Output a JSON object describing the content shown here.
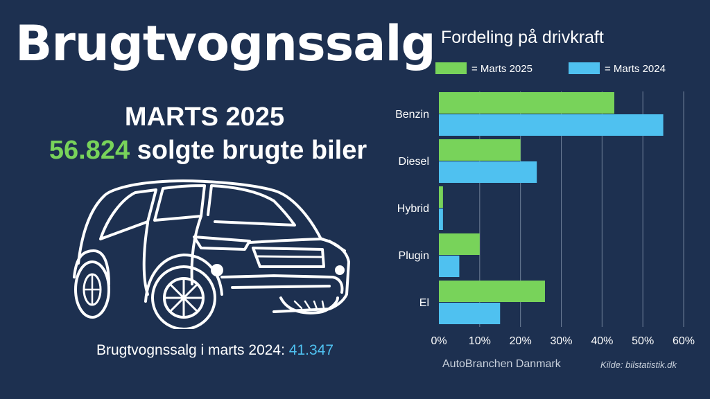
{
  "header": {
    "title": "Brugtvognssalg",
    "month": "MARTS 2025",
    "sold_number": "56.824",
    "sold_text": " solgte brugte biler"
  },
  "footer": {
    "prev_label": "Brugtvognssalg i marts 2024: ",
    "prev_value": "41.347",
    "org": "AutoBranchen Danmark",
    "source": "Kilde: bilstatistik.dk"
  },
  "colors": {
    "background": "#1d3050",
    "green": "#78d35a",
    "blue": "#4fc1f0"
  },
  "car_icon": "suv-outline-icon",
  "chart_data": {
    "type": "bar",
    "orientation": "horizontal",
    "title": "Fordeling på drivkraft",
    "categories": [
      "Benzin",
      "Diesel",
      "Hybrid",
      "Plugin",
      "El"
    ],
    "series": [
      {
        "name": "= Marts 2025",
        "values": [
          43,
          20,
          1,
          10,
          26
        ],
        "color": "#78d35a"
      },
      {
        "name": "= Marts 2024",
        "values": [
          55,
          24,
          1,
          5,
          15
        ],
        "color": "#4fc1f0"
      }
    ],
    "xlim": [
      0,
      60
    ],
    "xticks": [
      "0%",
      "10%",
      "20%",
      "30%",
      "40%",
      "50%",
      "60%"
    ],
    "grid": true,
    "legend_position": "top"
  }
}
